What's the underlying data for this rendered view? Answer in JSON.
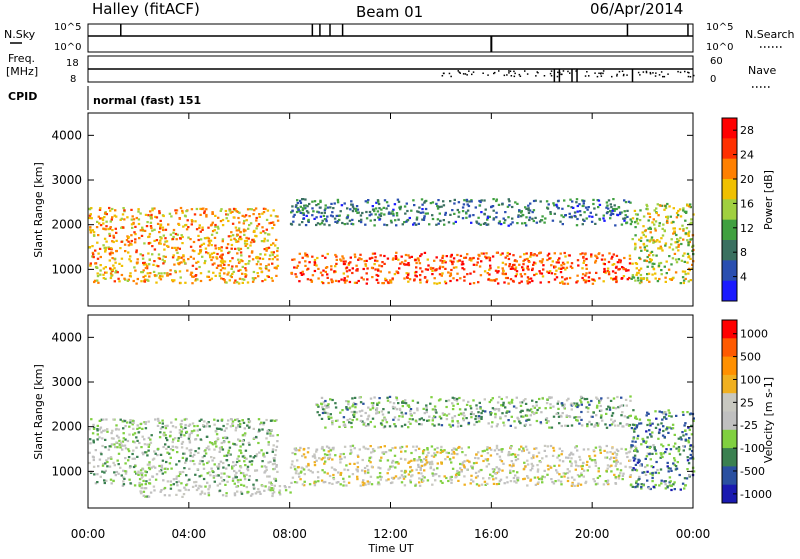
{
  "header": {
    "title": "Halley (fitACF)",
    "beam": "Beam 01",
    "date": "06/Apr/2014"
  },
  "strip_nsky": {
    "left_label": "N.Sky",
    "right_label": "N.Search",
    "left_ticks": [
      "10^5",
      "10^0"
    ],
    "right_ticks": [
      "10^5",
      "10^0"
    ]
  },
  "strip_freq": {
    "left_label_1": "Freq.",
    "left_label_2": "[MHz]",
    "right_label": "Nave",
    "left_ticks": [
      "18",
      "8"
    ],
    "right_ticks": [
      "60",
      "0"
    ]
  },
  "strip_cpid": {
    "label": "CPID",
    "value": "normal (fast) 151"
  },
  "x_axis": {
    "label": "Time UT",
    "ticks": [
      "00:00",
      "04:00",
      "08:00",
      "12:00",
      "16:00",
      "20:00",
      "00:00"
    ]
  },
  "colors": {
    "power": [
      "#1a1aff",
      "#2a4fb0",
      "#3a7060",
      "#40a040",
      "#a0d040",
      "#f0c000",
      "#ff8000",
      "#ff3000",
      "#ff0000"
    ],
    "velocity": [
      "#ff0000",
      "#ff5a00",
      "#ff9000",
      "#f0b020",
      "#c8c8c0",
      "#c0c0c0",
      "#80d040",
      "#3a8050",
      "#2a50a0",
      "#1a1ab0"
    ]
  },
  "chart_data": [
    {
      "type": "heatmap",
      "title": "",
      "xlabel": "Time UT",
      "ylabel": "Slant Range [km]",
      "xlim": [
        0,
        24
      ],
      "ylim": [
        180,
        4500
      ],
      "yticks": [
        "1000",
        "2000",
        "3000",
        "4000"
      ],
      "colorbar": {
        "label": "Power [dB]",
        "ticks": [
          "4",
          "8",
          "12",
          "16",
          "20",
          "24",
          "28"
        ],
        "range": [
          0,
          30
        ]
      },
      "features": [
        {
          "t": [
            0,
            7.5
          ],
          "range": [
            700,
            2400
          ],
          "value": 20
        },
        {
          "t": [
            8,
            21.5
          ],
          "range": [
            700,
            1400
          ],
          "value": 24
        },
        {
          "t": [
            8,
            21.5
          ],
          "range": [
            2000,
            2600
          ],
          "value": 8
        },
        {
          "t": [
            21.5,
            24
          ],
          "range": [
            700,
            2500
          ],
          "value": 16
        }
      ]
    },
    {
      "type": "heatmap",
      "title": "",
      "xlabel": "Time UT",
      "ylabel": "Slant Range [km]",
      "xlim": [
        0,
        24
      ],
      "ylim": [
        180,
        4500
      ],
      "yticks": [
        "1000",
        "2000",
        "3000",
        "4000"
      ],
      "colorbar": {
        "label": "Velocity [m s-1]",
        "ticks": [
          "1000",
          "500",
          "100",
          "25",
          "-25",
          "-100",
          "-500",
          "-1000"
        ],
        "range": [
          -1000,
          1000
        ]
      },
      "features": [
        {
          "t": [
            0,
            7.5
          ],
          "range": [
            700,
            2200
          ],
          "value": -200
        },
        {
          "t": [
            2,
            8
          ],
          "range": [
            450,
            700
          ],
          "value": -150
        },
        {
          "t": [
            8,
            21.5
          ],
          "range": [
            700,
            1600
          ],
          "value": 0
        },
        {
          "t": [
            9,
            21.5
          ],
          "range": [
            2000,
            2700
          ],
          "value": -300
        },
        {
          "t": [
            21.5,
            24
          ],
          "range": [
            600,
            2400
          ],
          "value": -500
        }
      ]
    }
  ]
}
